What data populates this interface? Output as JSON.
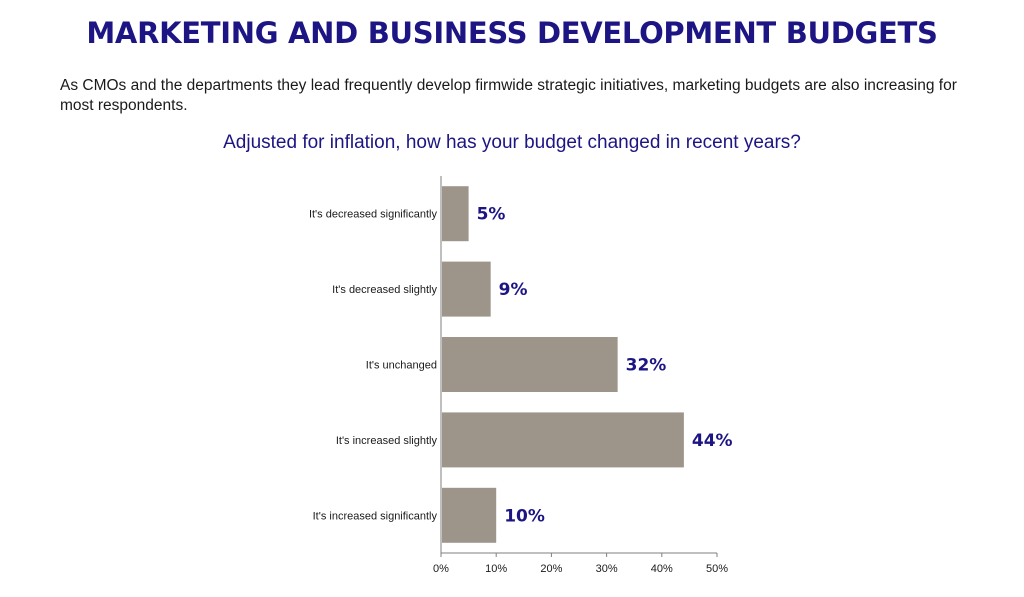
{
  "header": {
    "title": "MARKETING AND BUSINESS DEVELOPMENT BUDGETS",
    "intro": "As CMOs and the departments they lead frequently develop firmwide strategic initiatives, marketing budgets are also increasing for most respondents."
  },
  "chart_data": {
    "type": "bar",
    "orientation": "horizontal",
    "title": "Adjusted for inflation, how has your budget changed in recent years?",
    "categories": [
      "It's decreased significantly",
      "It's decreased slightly",
      "It's unchanged",
      "It's increased slightly",
      "It's increased significantly"
    ],
    "values": [
      5,
      9,
      32,
      44,
      10
    ],
    "data_labels": [
      "5%",
      "9%",
      "32%",
      "44%",
      "10%"
    ],
    "xlim": [
      0,
      50
    ],
    "x_ticks": [
      0,
      10,
      20,
      30,
      40,
      50
    ],
    "x_tick_labels": [
      "0%",
      "10%",
      "20%",
      "30%",
      "40%",
      "50%"
    ],
    "grid": false,
    "colors": {
      "bar": "#9e958a",
      "value_label": "#1c1583",
      "title": "#1c1583",
      "axis": "#7f7f7f"
    }
  }
}
